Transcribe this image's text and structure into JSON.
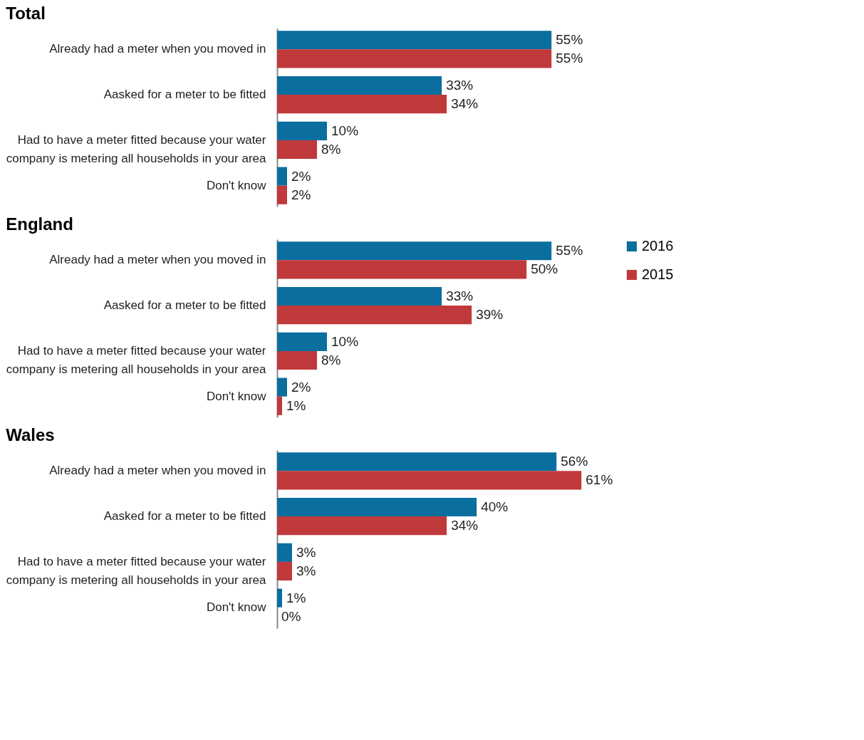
{
  "chart_data": [
    {
      "type": "bar",
      "orientation": "horizontal",
      "title": "Total",
      "categories": [
        "Already had a meter when you moved in",
        "Aasked for a meter to be fitted",
        "Had to have a meter fitted because your water company is metering all households in your area",
        "Don't know"
      ],
      "series": [
        {
          "color": "#0a6e9e",
          "values": [
            55,
            33,
            10,
            2
          ],
          "value_labels": [
            "55%",
            "33%",
            "10%",
            "2%"
          ]
        },
        {
          "color": "#c0393b",
          "values": [
            55,
            34,
            8,
            2
          ],
          "value_labels": [
            "55%",
            "34%",
            "8%",
            "2%"
          ]
        }
      ]
    },
    {
      "type": "bar",
      "orientation": "horizontal",
      "title": "England",
      "legend": "right",
      "categories": [
        "Already had a meter when you moved in",
        "Aasked for a meter to be fitted",
        "Had to have a meter fitted because your water company is metering all households in your area",
        "Don't know"
      ],
      "series": [
        {
          "name": "2016",
          "color": "#0a6e9e",
          "values": [
            55,
            33,
            10,
            2
          ],
          "value_labels": [
            "55%",
            "33%",
            "10%",
            "2%"
          ]
        },
        {
          "name": "2015",
          "color": "#c0393b",
          "values": [
            50,
            39,
            8,
            1
          ],
          "value_labels": [
            "50%",
            "39%",
            "8%",
            "1%"
          ]
        }
      ]
    },
    {
      "type": "bar",
      "orientation": "horizontal",
      "title": "Wales",
      "categories": [
        "Already had a meter when you moved in",
        "Aasked for a meter to be fitted",
        "Had to have a meter fitted because your water company is metering all households in your area",
        "Don't know"
      ],
      "series": [
        {
          "color": "#0a6e9e",
          "values": [
            56,
            40,
            3,
            1
          ],
          "value_labels": [
            "56%",
            "40%",
            "3%",
            "1%"
          ]
        },
        {
          "color": "#c0393b",
          "values": [
            61,
            34,
            3,
            0
          ],
          "value_labels": [
            "61%",
            "34%",
            "3%",
            "0%"
          ]
        }
      ]
    }
  ]
}
